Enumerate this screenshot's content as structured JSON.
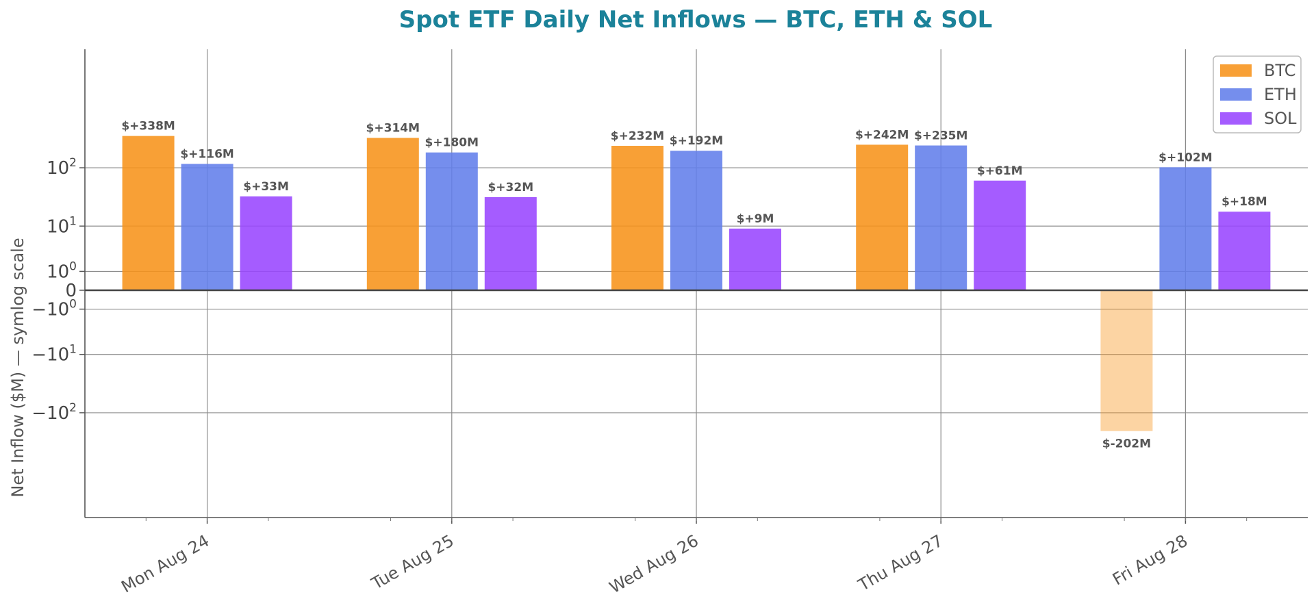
{
  "chart_data": {
    "type": "bar",
    "title": "Spot ETF Daily Net Inflows — BTC, ETH & SOL",
    "title_color": "#1b8299",
    "ylabel": "Net Inflow ($M) — symlog scale",
    "xlabel": "",
    "yscale": "symlog",
    "ylim": [
      -300,
      600
    ],
    "grid": true,
    "legend_position": "top-right",
    "categories": [
      "Mon Aug 24",
      "Tue Aug 25",
      "Wed Aug 26",
      "Thu Aug 27",
      "Fri Aug 28"
    ],
    "y_ticks": [
      {
        "value": 100,
        "label_base": "10",
        "label_exp": "2"
      },
      {
        "value": 10,
        "label_base": "10",
        "label_exp": "1"
      },
      {
        "value": 1,
        "label_base": "10",
        "label_exp": "0"
      },
      {
        "value": 0,
        "label_base": "0",
        "label_exp": ""
      },
      {
        "value": -1,
        "label_base": "−10",
        "label_exp": "0"
      },
      {
        "value": -10,
        "label_base": "−10",
        "label_exp": "1"
      },
      {
        "value": -100,
        "label_base": "−10",
        "label_exp": "2"
      }
    ],
    "series": [
      {
        "name": "BTC",
        "color": "#f7931a",
        "values": [
          338,
          314,
          232,
          242,
          -202
        ],
        "labels": [
          "$+338M",
          "$+314M",
          "$+232M",
          "$+242M",
          "$-202M"
        ]
      },
      {
        "name": "ETH",
        "color": "#627eea",
        "values": [
          116,
          180,
          192,
          235,
          102
        ],
        "labels": [
          "$+116M",
          "$+180M",
          "$+192M",
          "$+235M",
          "$+102M"
        ]
      },
      {
        "name": "SOL",
        "color": "#9945ff",
        "values": [
          33,
          32,
          9,
          61,
          18
        ],
        "labels": [
          "$+33M",
          "$+32M",
          "$+9M",
          "$+61M",
          "$+18M"
        ]
      }
    ]
  }
}
